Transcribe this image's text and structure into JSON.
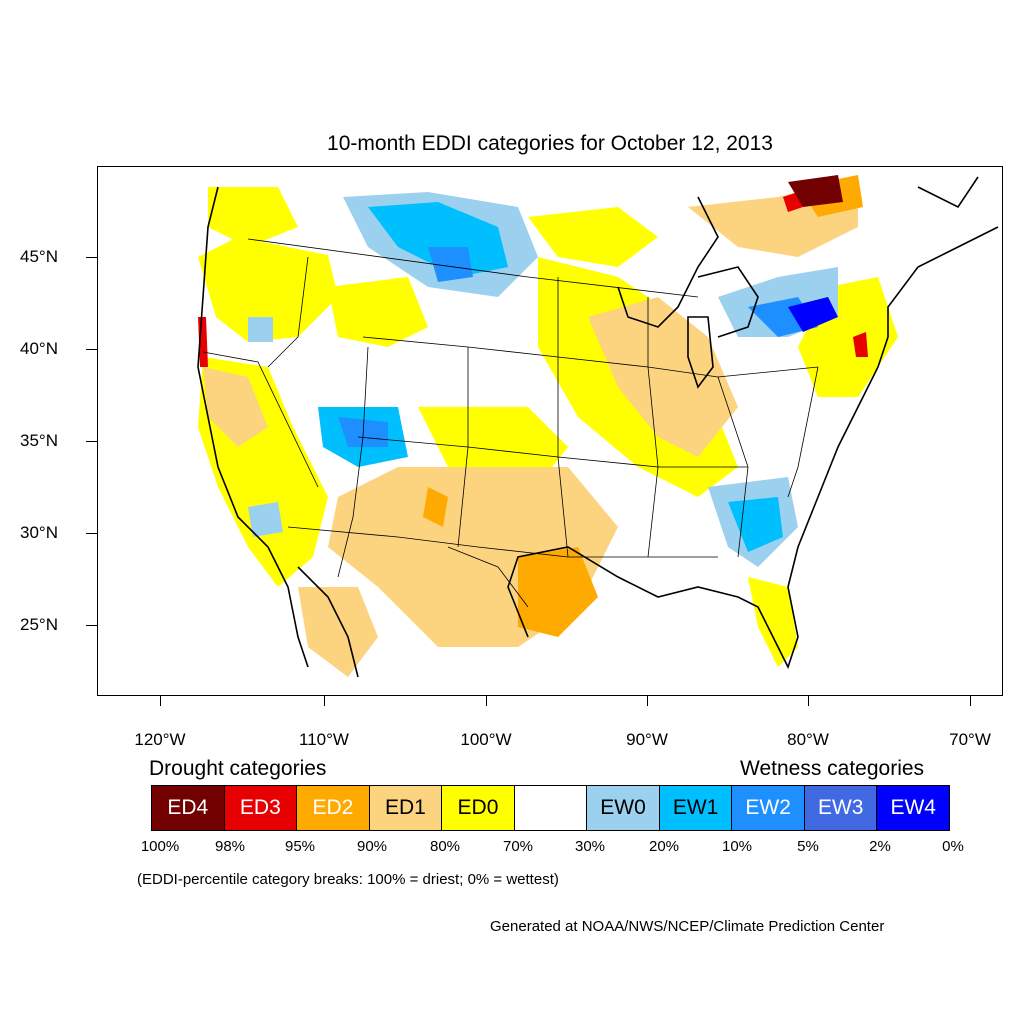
{
  "title": "10-month EDDI categories for October 12, 2013",
  "lat_labels": [
    "45°N",
    "40°N",
    "35°N",
    "30°N",
    "25°N"
  ],
  "lon_labels": [
    "120°W",
    "110°W",
    "100°W",
    "90°W",
    "80°W",
    "70°W"
  ],
  "legend": {
    "drought_heading": "Drought categories",
    "wetness_heading": "Wetness categories",
    "categories": [
      {
        "label": "ED4",
        "color": "#730000",
        "text_color": "#ffffff"
      },
      {
        "label": "ED3",
        "color": "#e60000",
        "text_color": "#ffffff"
      },
      {
        "label": "ED2",
        "color": "#ffaa00",
        "text_color": "#ffffff"
      },
      {
        "label": "ED1",
        "color": "#fcd37f",
        "text_color": "#000000"
      },
      {
        "label": "ED0",
        "color": "#ffff00",
        "text_color": "#000000"
      },
      {
        "label": "",
        "color": "#ffffff",
        "text_color": "#000000"
      },
      {
        "label": "EW0",
        "color": "#9bd0ee",
        "text_color": "#000000"
      },
      {
        "label": "EW1",
        "color": "#00bfff",
        "text_color": "#000000"
      },
      {
        "label": "EW2",
        "color": "#1e8fff",
        "text_color": "#ffffff"
      },
      {
        "label": "EW3",
        "color": "#4169e1",
        "text_color": "#ffffff"
      },
      {
        "label": "EW4",
        "color": "#0000ff",
        "text_color": "#ffffff"
      }
    ],
    "percent_labels": [
      "100%",
      "98%",
      "95%",
      "90%",
      "80%",
      "70%",
      "30%",
      "20%",
      "10%",
      "5%",
      "2%",
      "0%"
    ]
  },
  "note": "(EDDI-percentile category breaks: 100% = driest; 0% = wettest)",
  "credit": "Generated at NOAA/NWS/NCEP/Climate Prediction Center"
}
